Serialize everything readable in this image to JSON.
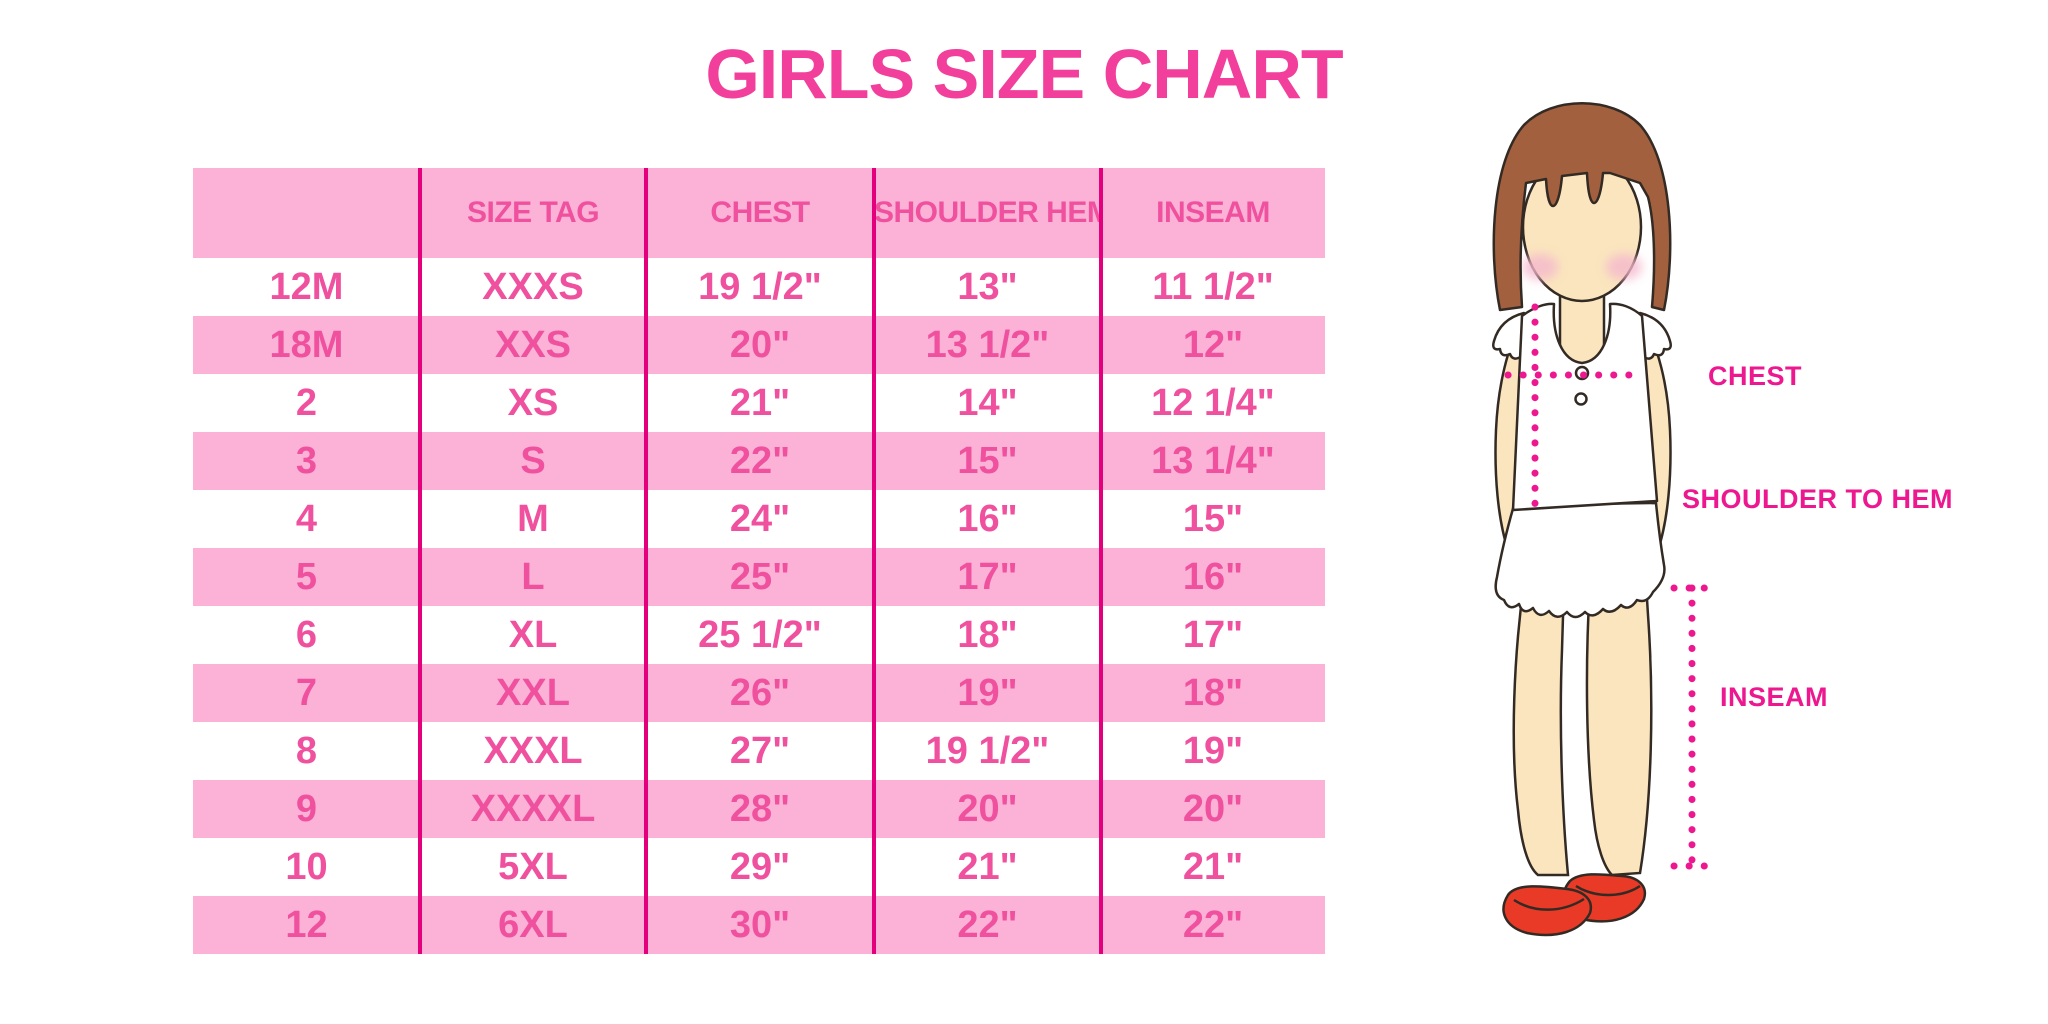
{
  "title": "GIRLS SIZE CHART",
  "chart_data": {
    "type": "table",
    "title": "GIRLS SIZE CHART",
    "columns": [
      "",
      "SIZE TAG",
      "CHEST",
      "SHOULDER HEM",
      "INSEAM"
    ],
    "rows": [
      [
        "12M",
        "XXXS",
        "19 1/2\"",
        "13\"",
        "11 1/2\""
      ],
      [
        "18M",
        "XXS",
        "20\"",
        "13 1/2\"",
        "12\""
      ],
      [
        "2",
        "XS",
        "21\"",
        "14\"",
        "12 1/4\""
      ],
      [
        "3",
        "S",
        "22\"",
        "15\"",
        "13 1/4\""
      ],
      [
        "4",
        "M",
        "24\"",
        "16\"",
        "15\""
      ],
      [
        "5",
        "L",
        "25\"",
        "17\"",
        "16\""
      ],
      [
        "6",
        "XL",
        "25 1/2\"",
        "18\"",
        "17\""
      ],
      [
        "7",
        "XXL",
        "26\"",
        "19\"",
        "18\""
      ],
      [
        "8",
        "XXXL",
        "27\"",
        "19 1/2\"",
        "19\""
      ],
      [
        "9",
        "XXXXL",
        "28\"",
        "20\"",
        "20\""
      ],
      [
        "10",
        "5XL",
        "29\"",
        "21\"",
        "21\""
      ],
      [
        "12",
        "6XL",
        "30\"",
        "22\"",
        "22\""
      ]
    ]
  },
  "diagram": {
    "figure": "girl-with-measurement-lines",
    "chest_label": "CHEST",
    "shoulder_to_hem_label": "SHOULDER TO HEM",
    "inseam_label": "INSEAM"
  },
  "colors": {
    "title_pink": "#F13F9B",
    "row_band_pink": "#FBB2D6",
    "table_text_pink": "#F0519F",
    "divider_magenta": "#E4007D",
    "measure_magenta": "#ED188F",
    "hair_brown": "#A2603E",
    "skin": "#FAE5BE",
    "blush_pink": "#F5B8CD",
    "shoe_red": "#E83A26",
    "outline_dark": "#332A24",
    "garment_white": "#FFFFFF"
  }
}
